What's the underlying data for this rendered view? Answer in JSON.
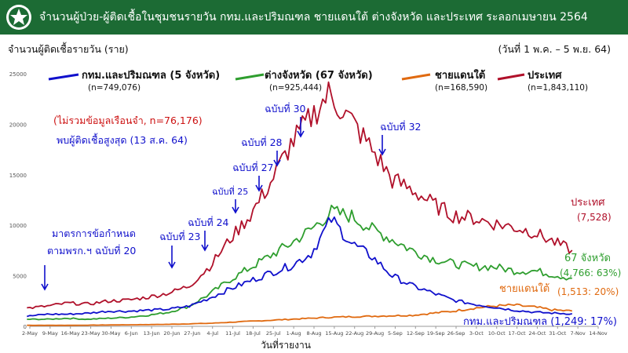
{
  "header": {
    "title": "จำนวนผู้ป่วย-ผู้ติดเชื้อในชุมชนรายวัน กทม.และปริมณฑล ชายแดนใต้ ต่างจังหวัด และประเทศ ระลอกเมษายน 2564",
    "header_color": "#1c6b34"
  },
  "subtitle": "จำนวนผู้ติดเชื้อรายวัน (ราย)",
  "date_range": "(วันที่ 1 พ.ค. – 5 พ.ย. 64)",
  "chart_data": {
    "type": "line",
    "title": "",
    "xlabel": "วันที่รายงาน",
    "ylabel": "",
    "ylim": [
      0,
      25000
    ],
    "yticks": [
      0,
      5000,
      10000,
      15000,
      20000,
      25000
    ],
    "ytick_labels": [
      "0",
      "5000",
      "10000",
      "15000",
      "20000",
      "25000"
    ],
    "x_start": "2021-05-02",
    "x_end": "2021-11-14",
    "xtick_labels": [
      "2-May",
      "9-May",
      "16-May",
      "23-May",
      "30-May",
      "6-Jun",
      "13-Jun",
      "20-Jun",
      "27-Jun",
      "4-Jul",
      "11-Jul",
      "18-Jul",
      "25-Jul",
      "1-Aug",
      "8-Aug",
      "15-Aug",
      "22-Aug",
      "29-Aug",
      "5-Sep",
      "12-Sep",
      "19-Sep",
      "26-Sep",
      "3-Oct",
      "10-Oct",
      "17-Oct",
      "24-Oct",
      "31-Oct",
      "7-Nov",
      "14-Nov"
    ],
    "grid": false,
    "legend_position": "top",
    "series": [
      {
        "name": "กทม.และปริมณฑล (5 จังหวัด)",
        "n_label": "(n=749,076)",
        "color": "#1010cc",
        "end_label": "กทม.และปริมณฑล (1,249: 17%)",
        "points": [
          [
            "2021-05-01",
            1000
          ],
          [
            "2021-05-08",
            1200
          ],
          [
            "2021-05-15",
            1200
          ],
          [
            "2021-05-22",
            1300
          ],
          [
            "2021-05-29",
            1500
          ],
          [
            "2021-06-05",
            1500
          ],
          [
            "2021-06-12",
            1600
          ],
          [
            "2021-06-19",
            1700
          ],
          [
            "2021-06-26",
            2000
          ],
          [
            "2021-07-03",
            2800
          ],
          [
            "2021-07-10",
            3700
          ],
          [
            "2021-07-17",
            4500
          ],
          [
            "2021-07-24",
            5300
          ],
          [
            "2021-07-31",
            6000
          ],
          [
            "2021-08-07",
            7200
          ],
          [
            "2021-08-14",
            10600
          ],
          [
            "2021-08-21",
            8200
          ],
          [
            "2021-08-28",
            6900
          ],
          [
            "2021-09-04",
            5000
          ],
          [
            "2021-09-11",
            4000
          ],
          [
            "2021-09-18",
            3300
          ],
          [
            "2021-09-25",
            2600
          ],
          [
            "2021-10-02",
            2200
          ],
          [
            "2021-10-09",
            1900
          ],
          [
            "2021-10-16",
            1600
          ],
          [
            "2021-10-23",
            1400
          ],
          [
            "2021-10-30",
            1300
          ],
          [
            "2021-11-05",
            1249
          ]
        ]
      },
      {
        "name": "ต่างจังหวัด (67 จังหวัด)",
        "n_label": "(n=925,444)",
        "color": "#2e9e2e",
        "end_label_1": "67 จังหวัด",
        "end_label_2": "(4,766: 63%)",
        "points": [
          [
            "2021-05-01",
            700
          ],
          [
            "2021-05-08",
            700
          ],
          [
            "2021-05-15",
            800
          ],
          [
            "2021-05-22",
            700
          ],
          [
            "2021-05-29",
            800
          ],
          [
            "2021-06-05",
            900
          ],
          [
            "2021-06-12",
            1100
          ],
          [
            "2021-06-19",
            1400
          ],
          [
            "2021-06-26",
            2000
          ],
          [
            "2021-07-03",
            3200
          ],
          [
            "2021-07-10",
            4600
          ],
          [
            "2021-07-17",
            5800
          ],
          [
            "2021-07-24",
            7000
          ],
          [
            "2021-07-31",
            8200
          ],
          [
            "2021-08-07",
            9600
          ],
          [
            "2021-08-14",
            11300
          ],
          [
            "2021-08-21",
            10900
          ],
          [
            "2021-08-28",
            9600
          ],
          [
            "2021-09-04",
            8600
          ],
          [
            "2021-09-11",
            7500
          ],
          [
            "2021-09-18",
            6700
          ],
          [
            "2021-09-25",
            6200
          ],
          [
            "2021-10-02",
            5900
          ],
          [
            "2021-10-09",
            5900
          ],
          [
            "2021-10-16",
            5500
          ],
          [
            "2021-10-23",
            5500
          ],
          [
            "2021-10-30",
            5100
          ],
          [
            "2021-11-05",
            4766
          ]
        ]
      },
      {
        "name": "ชายแดนใต้",
        "n_label": "(n=168,590)",
        "color": "#e06a10",
        "end_label": "ชายแดนใต้",
        "end_label_2": "(1,513: 20%)",
        "points": [
          [
            "2021-05-01",
            100
          ],
          [
            "2021-05-15",
            100
          ],
          [
            "2021-06-05",
            150
          ],
          [
            "2021-06-19",
            200
          ],
          [
            "2021-07-03",
            300
          ],
          [
            "2021-07-17",
            500
          ],
          [
            "2021-07-31",
            700
          ],
          [
            "2021-08-14",
            900
          ],
          [
            "2021-08-28",
            1000
          ],
          [
            "2021-09-11",
            1100
          ],
          [
            "2021-09-25",
            1500
          ],
          [
            "2021-10-02",
            1800
          ],
          [
            "2021-10-09",
            2000
          ],
          [
            "2021-10-16",
            2100
          ],
          [
            "2021-10-23",
            1900
          ],
          [
            "2021-10-30",
            1600
          ],
          [
            "2021-11-05",
            1513
          ]
        ]
      },
      {
        "name": "ประเทศ",
        "n_label": "(n=1,843,110)",
        "color": "#b0102a",
        "end_label": "ประเทศ",
        "end_label_2": "(7,528)",
        "points": [
          [
            "2021-05-01",
            1800
          ],
          [
            "2021-05-08",
            2000
          ],
          [
            "2021-05-15",
            2300
          ],
          [
            "2021-05-22",
            2200
          ],
          [
            "2021-05-29",
            2500
          ],
          [
            "2021-06-05",
            2600
          ],
          [
            "2021-06-12",
            2900
          ],
          [
            "2021-06-19",
            3300
          ],
          [
            "2021-06-26",
            4000
          ],
          [
            "2021-07-03",
            5900
          ],
          [
            "2021-07-10",
            8600
          ],
          [
            "2021-07-17",
            11000
          ],
          [
            "2021-07-24",
            14200
          ],
          [
            "2021-07-31",
            18000
          ],
          [
            "2021-08-07",
            20700
          ],
          [
            "2021-08-13",
            23000
          ],
          [
            "2021-08-21",
            20300
          ],
          [
            "2021-08-28",
            17500
          ],
          [
            "2021-09-04",
            14500
          ],
          [
            "2021-09-11",
            13500
          ],
          [
            "2021-09-18",
            12100
          ],
          [
            "2021-09-25",
            11000
          ],
          [
            "2021-10-02",
            10700
          ],
          [
            "2021-10-09",
            10200
          ],
          [
            "2021-10-16",
            9800
          ],
          [
            "2021-10-23",
            9300
          ],
          [
            "2021-10-30",
            8300
          ],
          [
            "2021-11-05",
            7528
          ]
        ]
      }
    ],
    "annotations": [
      {
        "id": "note-excl",
        "text": "(ไม่รวมข้อมูลเรือนจำ, n=76,176)",
        "color": "#cc1111"
      },
      {
        "id": "note-peak",
        "text": "พบผู้ติดเชื้อสูงสุด (13 ส.ค. 64)",
        "color": "#1010cc"
      },
      {
        "id": "measure1",
        "text": "มาตรการข้อกำหนด",
        "color": "#1010cc"
      },
      {
        "id": "measure2",
        "text": "ตามพรก.ฯ ฉบับที่ 20",
        "color": "#1010cc"
      },
      {
        "id": "ed23",
        "text": "ฉบับที่ 23",
        "color": "#1010cc"
      },
      {
        "id": "ed24",
        "text": "ฉบับที่ 24",
        "color": "#1010cc"
      },
      {
        "id": "ed25",
        "text": "ฉบับที่ 25",
        "color": "#1010cc"
      },
      {
        "id": "ed27",
        "text": "ฉบับที่ 27",
        "color": "#1010cc"
      },
      {
        "id": "ed28",
        "text": "ฉบับที่ 28",
        "color": "#1010cc"
      },
      {
        "id": "ed30",
        "text": "ฉบับที่ 30",
        "color": "#1010cc"
      },
      {
        "id": "ed32",
        "text": "ฉบับที่ 32",
        "color": "#1010cc"
      }
    ]
  }
}
